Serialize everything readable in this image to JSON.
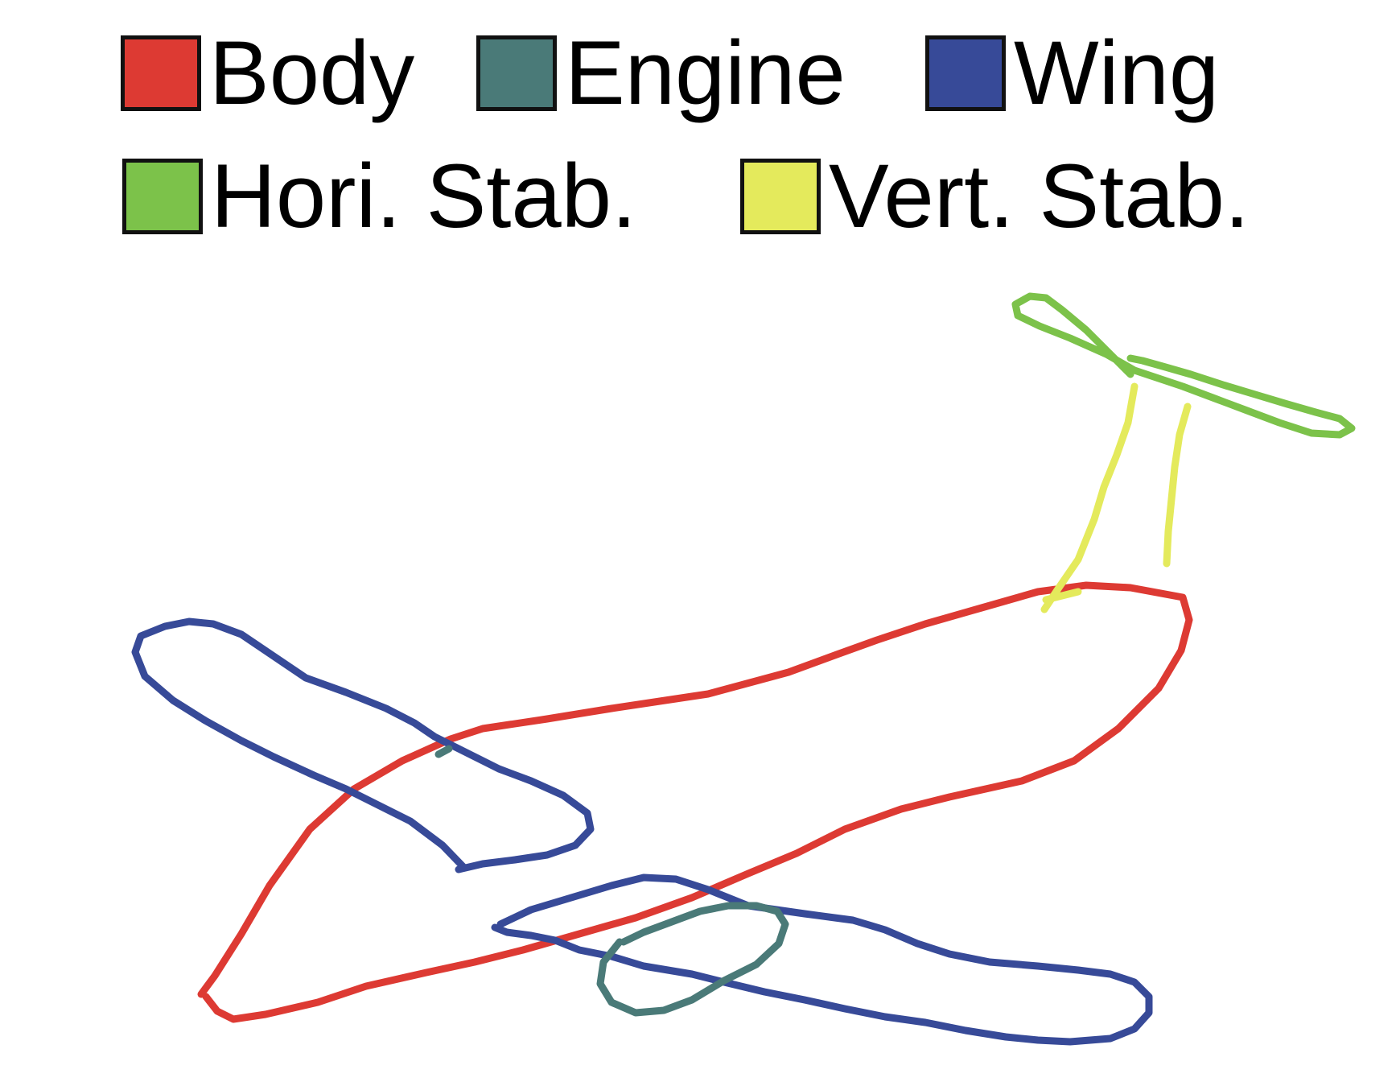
{
  "legend": [
    {
      "label": "Body",
      "color": "#dd3a33"
    },
    {
      "label": "Engine",
      "color": "#4a7a78"
    },
    {
      "label": "Wing",
      "color": "#374a98"
    },
    {
      "label": "Hori. Stab.",
      "color": "#7cc24a"
    },
    {
      "label": "Vert. Stab.",
      "color": "#e4ea5c"
    }
  ],
  "sketch": {
    "subject": "airplane",
    "stroke_parts": [
      "Body",
      "Engine",
      "Wing",
      "Hori. Stab.",
      "Vert. Stab."
    ]
  }
}
